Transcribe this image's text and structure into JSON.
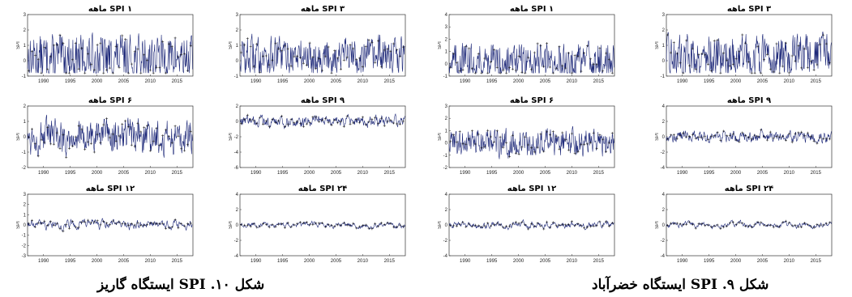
{
  "captions": {
    "left": "شکل ۱۰. SPI ایستگاه گاریز",
    "right": "شکل ۹. SPI ایستگاه خضرآباد"
  },
  "y_axis_label": "SPI",
  "chart_data": [
    {
      "type": "line",
      "title": "SPI ۱ ماهه",
      "ylabel": "SPI",
      "xlim": [
        1987,
        2018
      ],
      "xticks": [
        1990,
        1995,
        2000,
        2005,
        2010,
        2015
      ],
      "ylim": [
        -1,
        3
      ],
      "yticks": [
        -1,
        0,
        1,
        2,
        3
      ],
      "volatility": 1.6,
      "mean": 0.2
    },
    {
      "type": "line",
      "title": "SPI ۳ ماهه",
      "ylabel": "SPI",
      "xlim": [
        1987,
        2018
      ],
      "xticks": [
        1990,
        1995,
        2000,
        2005,
        2010,
        2015
      ],
      "ylim": [
        -1,
        3
      ],
      "yticks": [
        -1,
        0,
        1,
        2,
        3
      ],
      "volatility": 1.4,
      "mean": 0.3
    },
    {
      "type": "line",
      "title": "SPI ۱ ماهه",
      "ylabel": "SPI",
      "xlim": [
        1987,
        2018
      ],
      "xticks": [
        1990,
        1995,
        2000,
        2005,
        2010,
        2015
      ],
      "ylim": [
        -1,
        4
      ],
      "yticks": [
        -1,
        0,
        1,
        2,
        3,
        4
      ],
      "volatility": 1.6,
      "mean": 0.2
    },
    {
      "type": "line",
      "title": "SPI ۳ ماهه",
      "ylabel": "SPI",
      "xlim": [
        1987,
        2018
      ],
      "xticks": [
        1990,
        1995,
        2000,
        2005,
        2010,
        2015
      ],
      "ylim": [
        -1,
        3
      ],
      "yticks": [
        -1,
        0,
        1,
        2,
        3
      ],
      "volatility": 1.5,
      "mean": 0.3
    },
    {
      "type": "line",
      "title": "SPI ۶ ماهه",
      "ylabel": "SPI",
      "xlim": [
        1987,
        2018
      ],
      "xticks": [
        1990,
        1995,
        2000,
        2005,
        2010,
        2015
      ],
      "ylim": [
        -2,
        2
      ],
      "yticks": [
        -2,
        -1,
        0,
        1,
        2
      ],
      "volatility": 1.3,
      "mean": 0
    },
    {
      "type": "line",
      "title": "SPI ۹ ماهه",
      "ylabel": "SPI",
      "xlim": [
        1987,
        2018
      ],
      "xticks": [
        1990,
        1995,
        2000,
        2005,
        2010,
        2015
      ],
      "ylim": [
        -6,
        2
      ],
      "yticks": [
        -6,
        -4,
        -2,
        0,
        2
      ],
      "volatility": 0.9,
      "mean": 0
    },
    {
      "type": "line",
      "title": "SPI ۶ ماهه",
      "ylabel": "SPI",
      "xlim": [
        1987,
        2018
      ],
      "xticks": [
        1990,
        1995,
        2000,
        2005,
        2010,
        2015
      ],
      "ylim": [
        -2,
        3
      ],
      "yticks": [
        -2,
        -1,
        0,
        1,
        2,
        3
      ],
      "volatility": 1.3,
      "mean": 0
    },
    {
      "type": "line",
      "title": "SPI ۹ ماهه",
      "ylabel": "SPI",
      "xlim": [
        1987,
        2018
      ],
      "xticks": [
        1990,
        1995,
        2000,
        2005,
        2010,
        2015
      ],
      "ylim": [
        -4,
        4
      ],
      "yticks": [
        -4,
        -2,
        0,
        2,
        4
      ],
      "volatility": 0.9,
      "mean": 0
    },
    {
      "type": "line",
      "title": "SPI ۱۲ ماهه",
      "ylabel": "SPI",
      "xlim": [
        1987,
        2018
      ],
      "xticks": [
        1990,
        1995,
        2000,
        2005,
        2010,
        2015
      ],
      "ylim": [
        -3,
        3
      ],
      "yticks": [
        -3,
        -2,
        -1,
        0,
        1,
        2,
        3
      ],
      "volatility": 0.6,
      "mean": 0
    },
    {
      "type": "line",
      "title": "SPI ۲۴ ماهه",
      "ylabel": "SPI",
      "xlim": [
        1987,
        2018
      ],
      "xticks": [
        1990,
        1995,
        2000,
        2005,
        2010,
        2015
      ],
      "ylim": [
        -4,
        4
      ],
      "yticks": [
        -4,
        -2,
        0,
        2,
        4
      ],
      "volatility": 0.5,
      "mean": 0
    },
    {
      "type": "line",
      "title": "SPI ۱۲ ماهه",
      "ylabel": "SPI",
      "xlim": [
        1987,
        2018
      ],
      "xticks": [
        1990,
        1995,
        2000,
        2005,
        2010,
        2015
      ],
      "ylim": [
        -4,
        4
      ],
      "yticks": [
        -4,
        -2,
        0,
        2,
        4
      ],
      "volatility": 0.6,
      "mean": 0
    },
    {
      "type": "line",
      "title": "SPI ۲۴ ماهه",
      "ylabel": "SPI",
      "xlim": [
        1987,
        2018
      ],
      "xticks": [
        1990,
        1995,
        2000,
        2005,
        2010,
        2015
      ],
      "ylim": [
        -4,
        4
      ],
      "yticks": [
        -4,
        -2,
        0,
        2,
        4
      ],
      "volatility": 0.5,
      "mean": 0
    }
  ]
}
